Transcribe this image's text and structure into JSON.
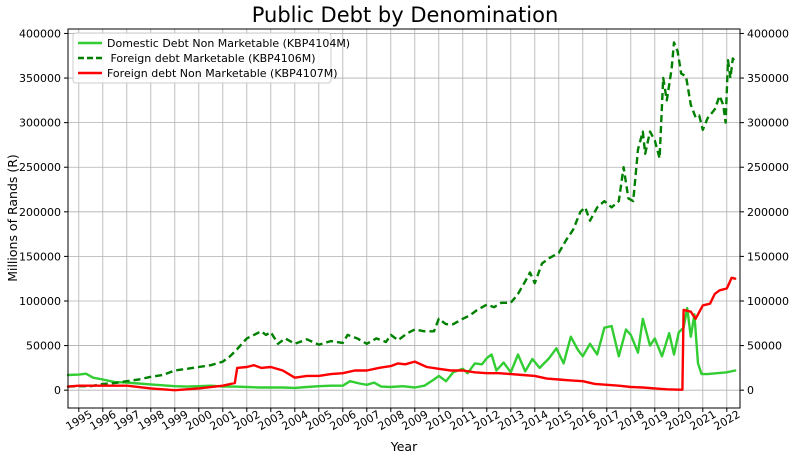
{
  "chart_data": {
    "type": "line",
    "title": "Public Debt by Denomination",
    "xlabel": "Year",
    "ylabel": "Millions of Rands (R)",
    "xlim": [
      1994.55,
      2022.55
    ],
    "ylim": [
      -20000,
      405000
    ],
    "grid": true,
    "legend_position": "top-left",
    "secondary_y_axis": "right, same ticks",
    "x_ticks": [
      1995,
      1996,
      1997,
      1998,
      1999,
      2000,
      2001,
      2002,
      2003,
      2004,
      2005,
      2006,
      2007,
      2008,
      2009,
      2010,
      2011,
      2012,
      2013,
      2014,
      2015,
      2016,
      2017,
      2018,
      2019,
      2020,
      2021,
      2022
    ],
    "y_ticks": [
      0,
      50000,
      100000,
      150000,
      200000,
      250000,
      300000,
      350000,
      400000
    ],
    "series": [
      {
        "name": "Domestic Debt Non Marketable (KBP4104M)",
        "color": "#32cd32",
        "style": "solid",
        "points": [
          [
            1994.55,
            17000
          ],
          [
            1995.0,
            17500
          ],
          [
            1995.3,
            18500
          ],
          [
            1995.6,
            14000
          ],
          [
            1996.0,
            12000
          ],
          [
            1996.5,
            9000
          ],
          [
            1997.0,
            8500
          ],
          [
            1997.5,
            7500
          ],
          [
            1998.0,
            6500
          ],
          [
            1998.5,
            5500
          ],
          [
            1999.0,
            4500
          ],
          [
            1999.5,
            4000
          ],
          [
            2000.0,
            4500
          ],
          [
            2000.5,
            5000
          ],
          [
            2001.0,
            4000
          ],
          [
            2001.5,
            4000
          ],
          [
            2002.0,
            3500
          ],
          [
            2002.5,
            3000
          ],
          [
            2003.0,
            3000
          ],
          [
            2003.5,
            3000
          ],
          [
            2004.0,
            2500
          ],
          [
            2004.5,
            3500
          ],
          [
            2005.0,
            4500
          ],
          [
            2005.5,
            5000
          ],
          [
            2006.0,
            5000
          ],
          [
            2006.3,
            10000
          ],
          [
            2006.7,
            7500
          ],
          [
            2007.0,
            6000
          ],
          [
            2007.3,
            8500
          ],
          [
            2007.6,
            4000
          ],
          [
            2008.0,
            3500
          ],
          [
            2008.5,
            4500
          ],
          [
            2009.0,
            3000
          ],
          [
            2009.4,
            5000
          ],
          [
            2009.8,
            12000
          ],
          [
            2010.0,
            16000
          ],
          [
            2010.3,
            10000
          ],
          [
            2010.6,
            20000
          ],
          [
            2011.0,
            24000
          ],
          [
            2011.2,
            19000
          ],
          [
            2011.5,
            30000
          ],
          [
            2011.8,
            29000
          ],
          [
            2012.0,
            36000
          ],
          [
            2012.2,
            40000
          ],
          [
            2012.4,
            22000
          ],
          [
            2012.7,
            31000
          ],
          [
            2013.0,
            20000
          ],
          [
            2013.3,
            40000
          ],
          [
            2013.6,
            21000
          ],
          [
            2013.9,
            35000
          ],
          [
            2014.2,
            25000
          ],
          [
            2014.6,
            36000
          ],
          [
            2014.9,
            47000
          ],
          [
            2015.2,
            30000
          ],
          [
            2015.5,
            60000
          ],
          [
            2015.8,
            45000
          ],
          [
            2016.0,
            38000
          ],
          [
            2016.3,
            52000
          ],
          [
            2016.6,
            40000
          ],
          [
            2016.9,
            70000
          ],
          [
            2017.2,
            72000
          ],
          [
            2017.5,
            38000
          ],
          [
            2017.8,
            68000
          ],
          [
            2018.0,
            62000
          ],
          [
            2018.3,
            42000
          ],
          [
            2018.5,
            80000
          ],
          [
            2018.8,
            50000
          ],
          [
            2019.0,
            58000
          ],
          [
            2019.3,
            38000
          ],
          [
            2019.6,
            64000
          ],
          [
            2019.8,
            40000
          ],
          [
            2020.0,
            65000
          ],
          [
            2020.2,
            70000
          ],
          [
            2020.35,
            92000
          ],
          [
            2020.5,
            60000
          ],
          [
            2020.65,
            85000
          ],
          [
            2020.8,
            30000
          ],
          [
            2020.95,
            18000
          ],
          [
            2021.2,
            18000
          ],
          [
            2021.6,
            19000
          ],
          [
            2022.0,
            20000
          ],
          [
            2022.35,
            22000
          ]
        ]
      },
      {
        "name": " Foreign debt Marketable (KBP4106M)",
        "color": "#008000",
        "style": "dashed",
        "points": [
          [
            1994.55,
            4000
          ],
          [
            1995.0,
            4500
          ],
          [
            1995.5,
            4500
          ],
          [
            1996.0,
            7000
          ],
          [
            1996.5,
            8000
          ],
          [
            1997.0,
            10000
          ],
          [
            1997.5,
            12000
          ],
          [
            1998.0,
            15000
          ],
          [
            1998.5,
            17000
          ],
          [
            1999.0,
            22000
          ],
          [
            1999.5,
            24000
          ],
          [
            2000.0,
            26000
          ],
          [
            2000.5,
            28000
          ],
          [
            2001.0,
            32000
          ],
          [
            2001.3,
            38000
          ],
          [
            2001.6,
            46000
          ],
          [
            2002.0,
            58000
          ],
          [
            2002.3,
            62000
          ],
          [
            2002.6,
            66000
          ],
          [
            2002.8,
            62000
          ],
          [
            2003.0,
            65000
          ],
          [
            2003.3,
            52000
          ],
          [
            2003.6,
            58000
          ],
          [
            2004.0,
            52000
          ],
          [
            2004.5,
            57000
          ],
          [
            2005.0,
            51000
          ],
          [
            2005.5,
            55000
          ],
          [
            2006.0,
            53000
          ],
          [
            2006.2,
            62000
          ],
          [
            2006.6,
            58000
          ],
          [
            2007.0,
            52000
          ],
          [
            2007.4,
            58000
          ],
          [
            2007.8,
            54000
          ],
          [
            2008.0,
            62000
          ],
          [
            2008.3,
            56000
          ],
          [
            2008.7,
            64000
          ],
          [
            2009.0,
            68000
          ],
          [
            2009.4,
            66000
          ],
          [
            2009.8,
            66000
          ],
          [
            2010.0,
            80000
          ],
          [
            2010.3,
            74000
          ],
          [
            2010.6,
            74000
          ],
          [
            2011.0,
            80000
          ],
          [
            2011.3,
            84000
          ],
          [
            2011.6,
            90000
          ],
          [
            2012.0,
            96000
          ],
          [
            2012.3,
            93000
          ],
          [
            2012.6,
            98000
          ],
          [
            2013.0,
            98000
          ],
          [
            2013.3,
            108000
          ],
          [
            2013.6,
            122000
          ],
          [
            2013.8,
            132000
          ],
          [
            2014.0,
            120000
          ],
          [
            2014.3,
            142000
          ],
          [
            2014.6,
            148000
          ],
          [
            2015.0,
            154000
          ],
          [
            2015.3,
            168000
          ],
          [
            2015.6,
            180000
          ],
          [
            2015.9,
            200000
          ],
          [
            2016.1,
            205000
          ],
          [
            2016.3,
            190000
          ],
          [
            2016.6,
            205000
          ],
          [
            2016.9,
            212000
          ],
          [
            2017.2,
            205000
          ],
          [
            2017.5,
            212000
          ],
          [
            2017.7,
            250000
          ],
          [
            2017.9,
            215000
          ],
          [
            2018.1,
            212000
          ],
          [
            2018.3,
            270000
          ],
          [
            2018.5,
            290000
          ],
          [
            2018.6,
            265000
          ],
          [
            2018.8,
            290000
          ],
          [
            2019.0,
            280000
          ],
          [
            2019.2,
            260000
          ],
          [
            2019.35,
            350000
          ],
          [
            2019.5,
            325000
          ],
          [
            2019.7,
            360000
          ],
          [
            2019.8,
            390000
          ],
          [
            2019.95,
            380000
          ],
          [
            2020.1,
            355000
          ],
          [
            2020.3,
            352000
          ],
          [
            2020.5,
            320000
          ],
          [
            2020.7,
            306000
          ],
          [
            2020.85,
            308000
          ],
          [
            2021.0,
            292000
          ],
          [
            2021.2,
            305000
          ],
          [
            2021.5,
            315000
          ],
          [
            2021.7,
            330000
          ],
          [
            2021.85,
            320000
          ],
          [
            2021.95,
            300000
          ],
          [
            2022.05,
            370000
          ],
          [
            2022.15,
            350000
          ],
          [
            2022.25,
            372000
          ],
          [
            2022.35,
            368000
          ]
        ]
      },
      {
        "name": "Foreign debt Non Marketable (KBP4107M)",
        "color": "#ff0000",
        "style": "solid",
        "points": [
          [
            1994.55,
            4000
          ],
          [
            1995.0,
            5000
          ],
          [
            1996.0,
            5000
          ],
          [
            1997.0,
            5000
          ],
          [
            1998.0,
            2000
          ],
          [
            1999.0,
            0
          ],
          [
            2000.0,
            2000
          ],
          [
            2001.0,
            5000
          ],
          [
            2001.5,
            8000
          ],
          [
            2001.6,
            25000
          ],
          [
            2002.0,
            26000
          ],
          [
            2002.3,
            28000
          ],
          [
            2002.6,
            25000
          ],
          [
            2003.0,
            26000
          ],
          [
            2003.5,
            22000
          ],
          [
            2004.0,
            14000
          ],
          [
            2004.5,
            16000
          ],
          [
            2005.0,
            16000
          ],
          [
            2005.5,
            18000
          ],
          [
            2006.0,
            19000
          ],
          [
            2006.5,
            22000
          ],
          [
            2007.0,
            22000
          ],
          [
            2007.5,
            25000
          ],
          [
            2008.0,
            27000
          ],
          [
            2008.3,
            30000
          ],
          [
            2008.6,
            29000
          ],
          [
            2009.0,
            32000
          ],
          [
            2009.5,
            26000
          ],
          [
            2010.0,
            24000
          ],
          [
            2010.5,
            22000
          ],
          [
            2011.0,
            22000
          ],
          [
            2011.5,
            20000
          ],
          [
            2012.0,
            19000
          ],
          [
            2012.5,
            19000
          ],
          [
            2013.0,
            18000
          ],
          [
            2013.5,
            17000
          ],
          [
            2014.0,
            16000
          ],
          [
            2014.5,
            13000
          ],
          [
            2015.0,
            12000
          ],
          [
            2015.5,
            11000
          ],
          [
            2016.0,
            10000
          ],
          [
            2016.5,
            7000
          ],
          [
            2017.0,
            6000
          ],
          [
            2017.5,
            5000
          ],
          [
            2018.0,
            3500
          ],
          [
            2018.5,
            3000
          ],
          [
            2019.0,
            2000
          ],
          [
            2019.5,
            1000
          ],
          [
            2020.0,
            500
          ],
          [
            2020.15,
            500
          ],
          [
            2020.2,
            90000
          ],
          [
            2020.5,
            88000
          ],
          [
            2020.7,
            80000
          ],
          [
            2021.0,
            95000
          ],
          [
            2021.3,
            97000
          ],
          [
            2021.5,
            108000
          ],
          [
            2021.7,
            112000
          ],
          [
            2022.0,
            114000
          ],
          [
            2022.1,
            120000
          ],
          [
            2022.2,
            126000
          ],
          [
            2022.35,
            125000
          ]
        ]
      }
    ]
  }
}
